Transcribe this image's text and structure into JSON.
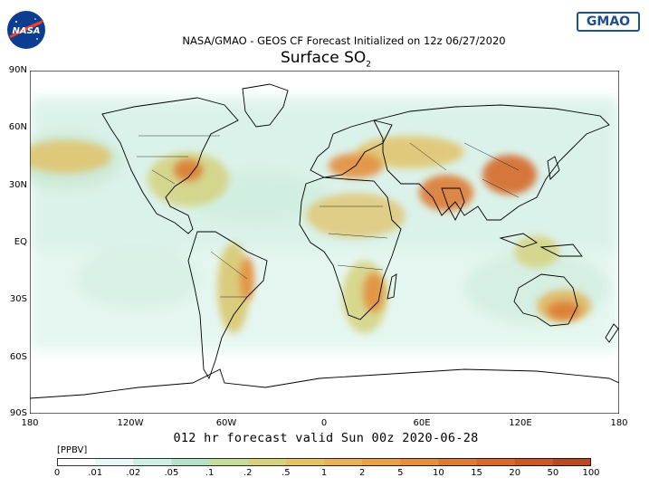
{
  "header": {
    "title_line": "NASA/GMAO - GEOS CF Forecast Initialized on 12z 06/27/2020",
    "main_title": "Surface SO",
    "main_title_sub": "2",
    "nasa_logo_text": "NASA",
    "gmao_logo_text": "GMAO"
  },
  "map": {
    "lat_labels": [
      "90N",
      "60N",
      "30N",
      "EQ",
      "30S",
      "60S",
      "90S"
    ],
    "lon_labels": [
      "180",
      "120W",
      "60W",
      "0",
      "60E",
      "120E",
      "180"
    ],
    "projection": "cylindrical equidistant",
    "colors": {
      "ocean_background": "#e4f6ef",
      "land_outline": "#000000",
      "low_concentration": "#c8ead5",
      "mid_concentration": "#d8c878",
      "high_concentration": "#d8742a"
    }
  },
  "footer": {
    "forecast_text": "012 hr forecast valid Sun 00z 2020-06-28",
    "units": "[PPBV]",
    "colorbar_labels": [
      "0",
      ".01",
      ".02",
      ".05",
      ".1",
      ".2",
      ".5",
      "1",
      "2",
      "5",
      "10",
      "15",
      "20",
      "50",
      "100"
    ],
    "colorbar_colors": [
      "#ffffff",
      "#eaf7f6",
      "#cfeee4",
      "#b5e2c9",
      "#c4dd9a",
      "#d5d27f",
      "#e2c36a",
      "#e8b358",
      "#e8a24a",
      "#e48f3e",
      "#dd7c34",
      "#d56a2c",
      "#c85a26",
      "#b64a20"
    ]
  }
}
